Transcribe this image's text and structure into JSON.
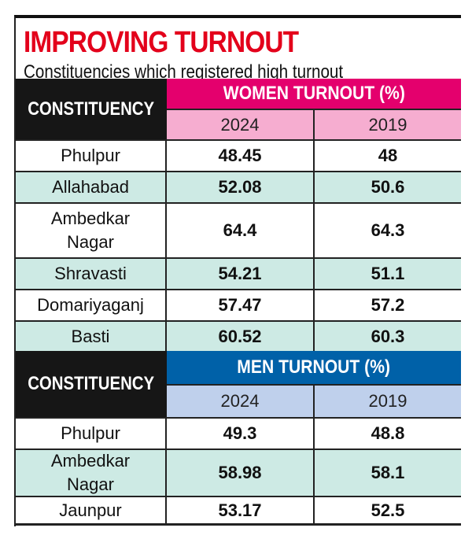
{
  "title": "IMPROVING TURNOUT",
  "subtitle": "Constituencies which registered high turnout",
  "colors": {
    "title": "#e3001b",
    "women_header": "#e4006d",
    "women_years": "#f6add0",
    "men_header": "#0061a8",
    "men_years": "#bfd0ec",
    "row_alt": "#cdeae4",
    "constituency_header": "#161616"
  },
  "chart_data": {
    "type": "table",
    "title": "IMPROVING TURNOUT",
    "subtitle": "Constituencies which registered high turnout",
    "sections": [
      {
        "constituency_label": "CONSTITUENCY",
        "group_label": "WOMEN TURNOUT (%)",
        "years": [
          "2024",
          "2019"
        ],
        "rows": [
          {
            "name": "Phulpur",
            "v2024": "48.45",
            "v2019": "48"
          },
          {
            "name": "Allahabad",
            "v2024": "52.08",
            "v2019": "50.6"
          },
          {
            "name": "Ambedkar Nagar",
            "v2024": "64.4",
            "v2019": "64.3"
          },
          {
            "name": "Shravasti",
            "v2024": "54.21",
            "v2019": "51.1"
          },
          {
            "name": "Domariyaganj",
            "v2024": "57.47",
            "v2019": "57.2"
          },
          {
            "name": "Basti",
            "v2024": "60.52",
            "v2019": "60.3"
          }
        ]
      },
      {
        "constituency_label": "CONSTITUENCY",
        "group_label": "MEN TURNOUT (%)",
        "years": [
          "2024",
          "2019"
        ],
        "rows": [
          {
            "name": "Phulpur",
            "v2024": "49.3",
            "v2019": "48.8"
          },
          {
            "name": "Ambedkar Nagar",
            "v2024": "58.98",
            "v2019": "58.1"
          },
          {
            "name": "Jaunpur",
            "v2024": "53.17",
            "v2019": "52.5"
          }
        ]
      }
    ]
  }
}
